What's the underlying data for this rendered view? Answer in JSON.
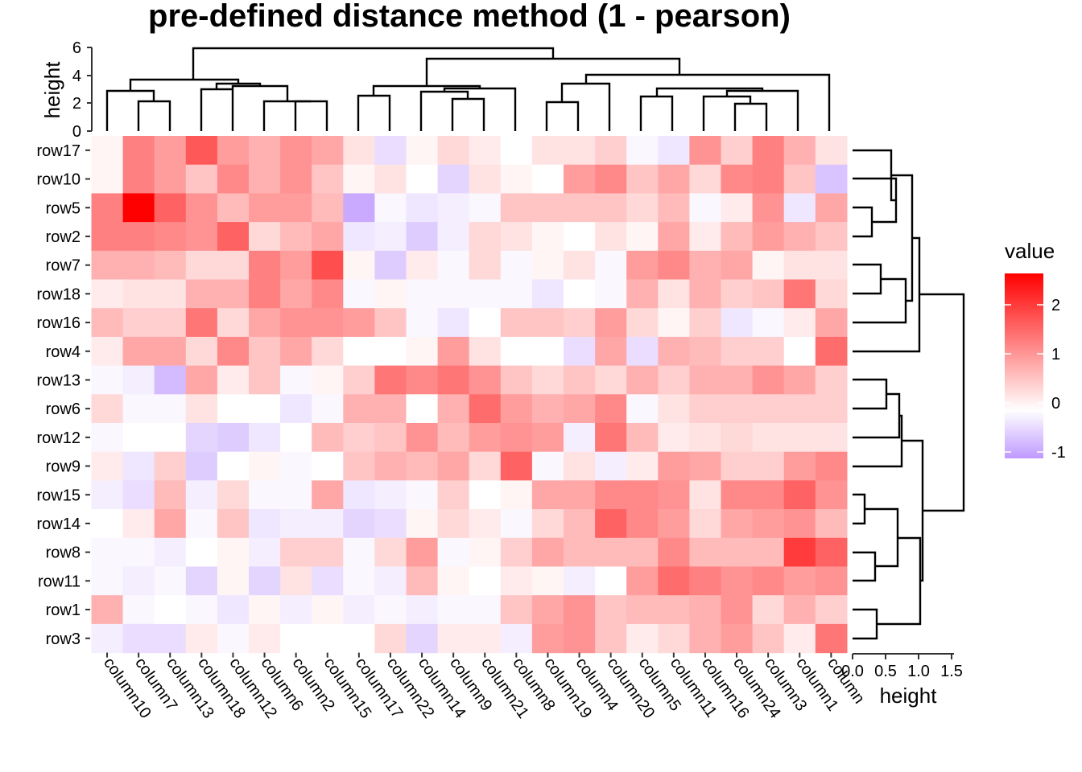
{
  "chart_data": {
    "type": "heatmap",
    "title": "pre-defined distance method (1 - pearson)",
    "rows": [
      "row17",
      "row10",
      "row5",
      "row2",
      "row7",
      "row18",
      "row16",
      "row4",
      "row13",
      "row6",
      "row12",
      "row9",
      "row15",
      "row14",
      "row8",
      "row11",
      "row1",
      "row3"
    ],
    "columns": [
      "column10",
      "column7",
      "column13",
      "column18",
      "column12",
      "column6",
      "column2",
      "column15",
      "column17",
      "column22",
      "column14",
      "column9",
      "column21",
      "column8",
      "column19",
      "column4",
      "column20",
      "column5",
      "column11",
      "column16",
      "column24",
      "column3",
      "column1",
      "column"
    ],
    "values": [
      [
        0.1,
        1.3,
        1.0,
        1.7,
        1.0,
        0.8,
        1.1,
        0.9,
        0.3,
        -0.4,
        0.1,
        0.4,
        0.2,
        0.0,
        0.3,
        0.3,
        0.5,
        -0.1,
        -0.3,
        1.1,
        0.5,
        1.3,
        0.8,
        0.3
      ],
      [
        0.1,
        1.3,
        1.0,
        0.6,
        1.2,
        0.8,
        1.1,
        0.6,
        0.1,
        0.3,
        0.0,
        -0.5,
        0.3,
        0.1,
        0.0,
        1.0,
        1.2,
        0.6,
        0.9,
        0.4,
        1.2,
        1.3,
        0.6,
        -0.7
      ],
      [
        1.3,
        2.6,
        1.6,
        1.1,
        0.7,
        1.0,
        1.0,
        0.7,
        -1.0,
        -0.1,
        -0.3,
        -0.2,
        -0.1,
        0.6,
        0.6,
        0.6,
        0.6,
        0.4,
        0.7,
        -0.1,
        0.2,
        1.1,
        -0.3,
        0.9
      ],
      [
        1.3,
        1.3,
        1.2,
        1.1,
        1.6,
        0.4,
        0.7,
        0.9,
        -0.3,
        -0.2,
        -0.6,
        -0.2,
        0.4,
        0.3,
        0.1,
        0.0,
        0.3,
        0.1,
        0.9,
        0.2,
        0.7,
        1.0,
        0.8,
        0.6
      ],
      [
        0.8,
        0.8,
        0.7,
        0.4,
        0.4,
        1.3,
        1.0,
        1.8,
        0.1,
        -0.6,
        0.2,
        -0.1,
        0.4,
        -0.1,
        0.1,
        0.3,
        -0.1,
        1.0,
        1.2,
        0.8,
        0.9,
        0.1,
        0.3,
        0.3
      ],
      [
        0.2,
        0.3,
        0.3,
        0.8,
        0.8,
        1.3,
        0.9,
        1.2,
        -0.1,
        0.1,
        -0.1,
        -0.1,
        -0.1,
        -0.1,
        -0.3,
        0.0,
        -0.1,
        0.8,
        0.3,
        0.8,
        0.5,
        0.6,
        1.4,
        0.4
      ],
      [
        0.7,
        0.5,
        0.5,
        1.4,
        0.4,
        0.9,
        1.1,
        1.1,
        1.0,
        0.6,
        -0.1,
        -0.3,
        0.0,
        0.6,
        0.6,
        0.5,
        1.0,
        0.4,
        0.1,
        0.5,
        -0.3,
        -0.1,
        0.2,
        0.9
      ],
      [
        0.2,
        0.9,
        0.9,
        0.4,
        1.2,
        0.6,
        0.9,
        0.4,
        0.0,
        0.0,
        0.1,
        1.0,
        0.3,
        0.0,
        0.0,
        -0.4,
        0.9,
        -0.4,
        0.8,
        0.7,
        0.5,
        0.5,
        0.0,
        1.5
      ],
      [
        -0.1,
        -0.2,
        -0.8,
        0.9,
        0.2,
        0.6,
        -0.1,
        0.1,
        0.5,
        1.4,
        1.2,
        1.4,
        1.1,
        0.6,
        0.4,
        0.6,
        0.4,
        0.8,
        0.5,
        0.8,
        0.8,
        1.1,
        0.9,
        0.5
      ],
      [
        0.4,
        -0.1,
        -0.1,
        0.3,
        0.0,
        0.0,
        -0.3,
        -0.1,
        0.8,
        0.8,
        0.0,
        0.8,
        1.5,
        1.0,
        0.8,
        0.9,
        1.2,
        -0.1,
        0.3,
        0.5,
        0.5,
        0.5,
        0.5,
        0.5
      ],
      [
        -0.1,
        0.0,
        0.0,
        -0.5,
        -0.6,
        -0.3,
        0.0,
        0.7,
        0.5,
        0.6,
        1.1,
        0.7,
        1.0,
        1.1,
        1.0,
        -0.2,
        1.4,
        0.7,
        0.2,
        0.3,
        0.4,
        0.3,
        0.3,
        0.3
      ],
      [
        0.2,
        -0.3,
        0.5,
        -0.6,
        0.0,
        0.1,
        -0.1,
        0.0,
        0.6,
        0.8,
        0.7,
        0.9,
        0.4,
        1.6,
        -0.1,
        0.3,
        -0.2,
        0.2,
        1.0,
        0.9,
        0.5,
        0.5,
        1.0,
        1.2
      ],
      [
        -0.2,
        -0.4,
        0.7,
        -0.2,
        0.4,
        -0.1,
        -0.1,
        0.9,
        -0.3,
        -0.2,
        -0.1,
        0.5,
        0.0,
        0.1,
        0.9,
        0.9,
        1.2,
        1.2,
        1.1,
        0.3,
        1.2,
        1.2,
        1.6,
        1.1
      ],
      [
        0.0,
        0.2,
        0.9,
        -0.1,
        0.6,
        -0.3,
        -0.2,
        -0.2,
        -0.5,
        -0.4,
        0.1,
        0.4,
        0.2,
        -0.1,
        0.4,
        0.7,
        1.6,
        1.2,
        1.0,
        0.4,
        0.9,
        1.0,
        1.1,
        0.7
      ],
      [
        -0.1,
        -0.1,
        -0.2,
        0.0,
        0.1,
        -0.2,
        0.5,
        0.5,
        -0.1,
        0.4,
        1.0,
        -0.1,
        0.1,
        0.5,
        0.9,
        0.7,
        0.7,
        0.7,
        1.2,
        0.7,
        0.7,
        0.7,
        2.0,
        1.6
      ],
      [
        -0.1,
        -0.2,
        -0.1,
        -0.5,
        0.1,
        -0.5,
        0.3,
        -0.4,
        -0.1,
        -0.2,
        0.7,
        0.1,
        0.0,
        0.2,
        0.1,
        -0.2,
        0.0,
        1.0,
        1.5,
        1.3,
        1.1,
        1.2,
        1.0,
        1.1
      ],
      [
        0.8,
        -0.1,
        0.0,
        -0.1,
        -0.3,
        0.1,
        -0.2,
        0.1,
        -0.2,
        -0.1,
        -0.2,
        -0.1,
        -0.1,
        0.6,
        0.9,
        1.1,
        0.6,
        0.7,
        0.7,
        0.8,
        1.1,
        0.4,
        0.8,
        0.5
      ],
      [
        -0.2,
        -0.4,
        -0.4,
        0.2,
        -0.1,
        0.2,
        0.0,
        0.0,
        0.0,
        0.4,
        -0.5,
        0.2,
        0.2,
        -0.2,
        1.0,
        1.1,
        0.6,
        0.2,
        0.4,
        0.8,
        1.0,
        0.6,
        0.2,
        1.4
      ]
    ],
    "color_scale": {
      "low": "#bf99ff",
      "mid": "#ffffff",
      "high": "#ff0000",
      "legend_title": "value",
      "ticks": [
        2,
        1,
        0,
        -1
      ]
    },
    "top_dendrogram": {
      "ylabel": "height",
      "ticks": [
        6,
        4,
        2,
        0
      ]
    },
    "right_dendrogram": {
      "xlabel": "height",
      "ticks": [
        "0.0",
        "0.5",
        "1.0",
        "1.5"
      ]
    }
  }
}
